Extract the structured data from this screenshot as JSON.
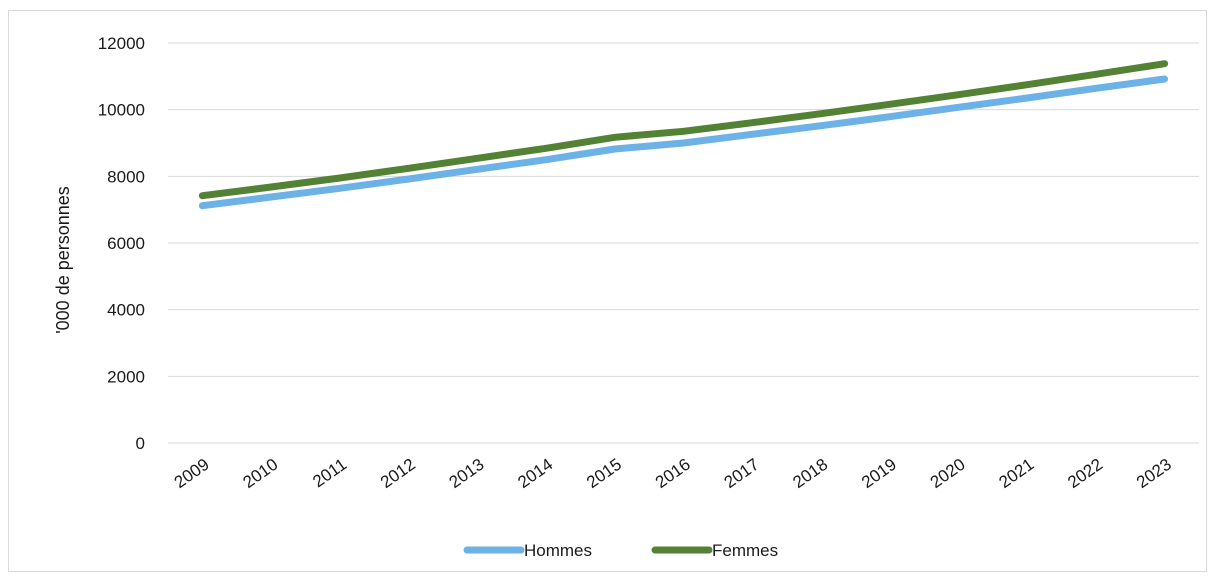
{
  "chart_data": {
    "type": "line",
    "title": "",
    "xlabel": "",
    "ylabel": "'000 de personnes",
    "ylim": [
      0,
      12000
    ],
    "yticks": [
      0,
      2000,
      4000,
      6000,
      8000,
      10000,
      12000
    ],
    "grid": true,
    "legend_position": "bottom",
    "categories": [
      "2009",
      "2010",
      "2011",
      "2012",
      "2013",
      "2014",
      "2015",
      "2016",
      "2017",
      "2018",
      "2019",
      "2020",
      "2021",
      "2022",
      "2023"
    ],
    "series": [
      {
        "name": "Hommes",
        "color": "#6cb2e6",
        "values": [
          7120,
          7380,
          7640,
          7920,
          8210,
          8500,
          8820,
          9000,
          9260,
          9520,
          9790,
          10070,
          10350,
          10640,
          10920
        ]
      },
      {
        "name": "Femmes",
        "color": "#548235",
        "values": [
          7420,
          7680,
          7950,
          8240,
          8540,
          8840,
          9170,
          9350,
          9610,
          9880,
          10160,
          10450,
          10750,
          11060,
          11380
        ]
      }
    ]
  }
}
